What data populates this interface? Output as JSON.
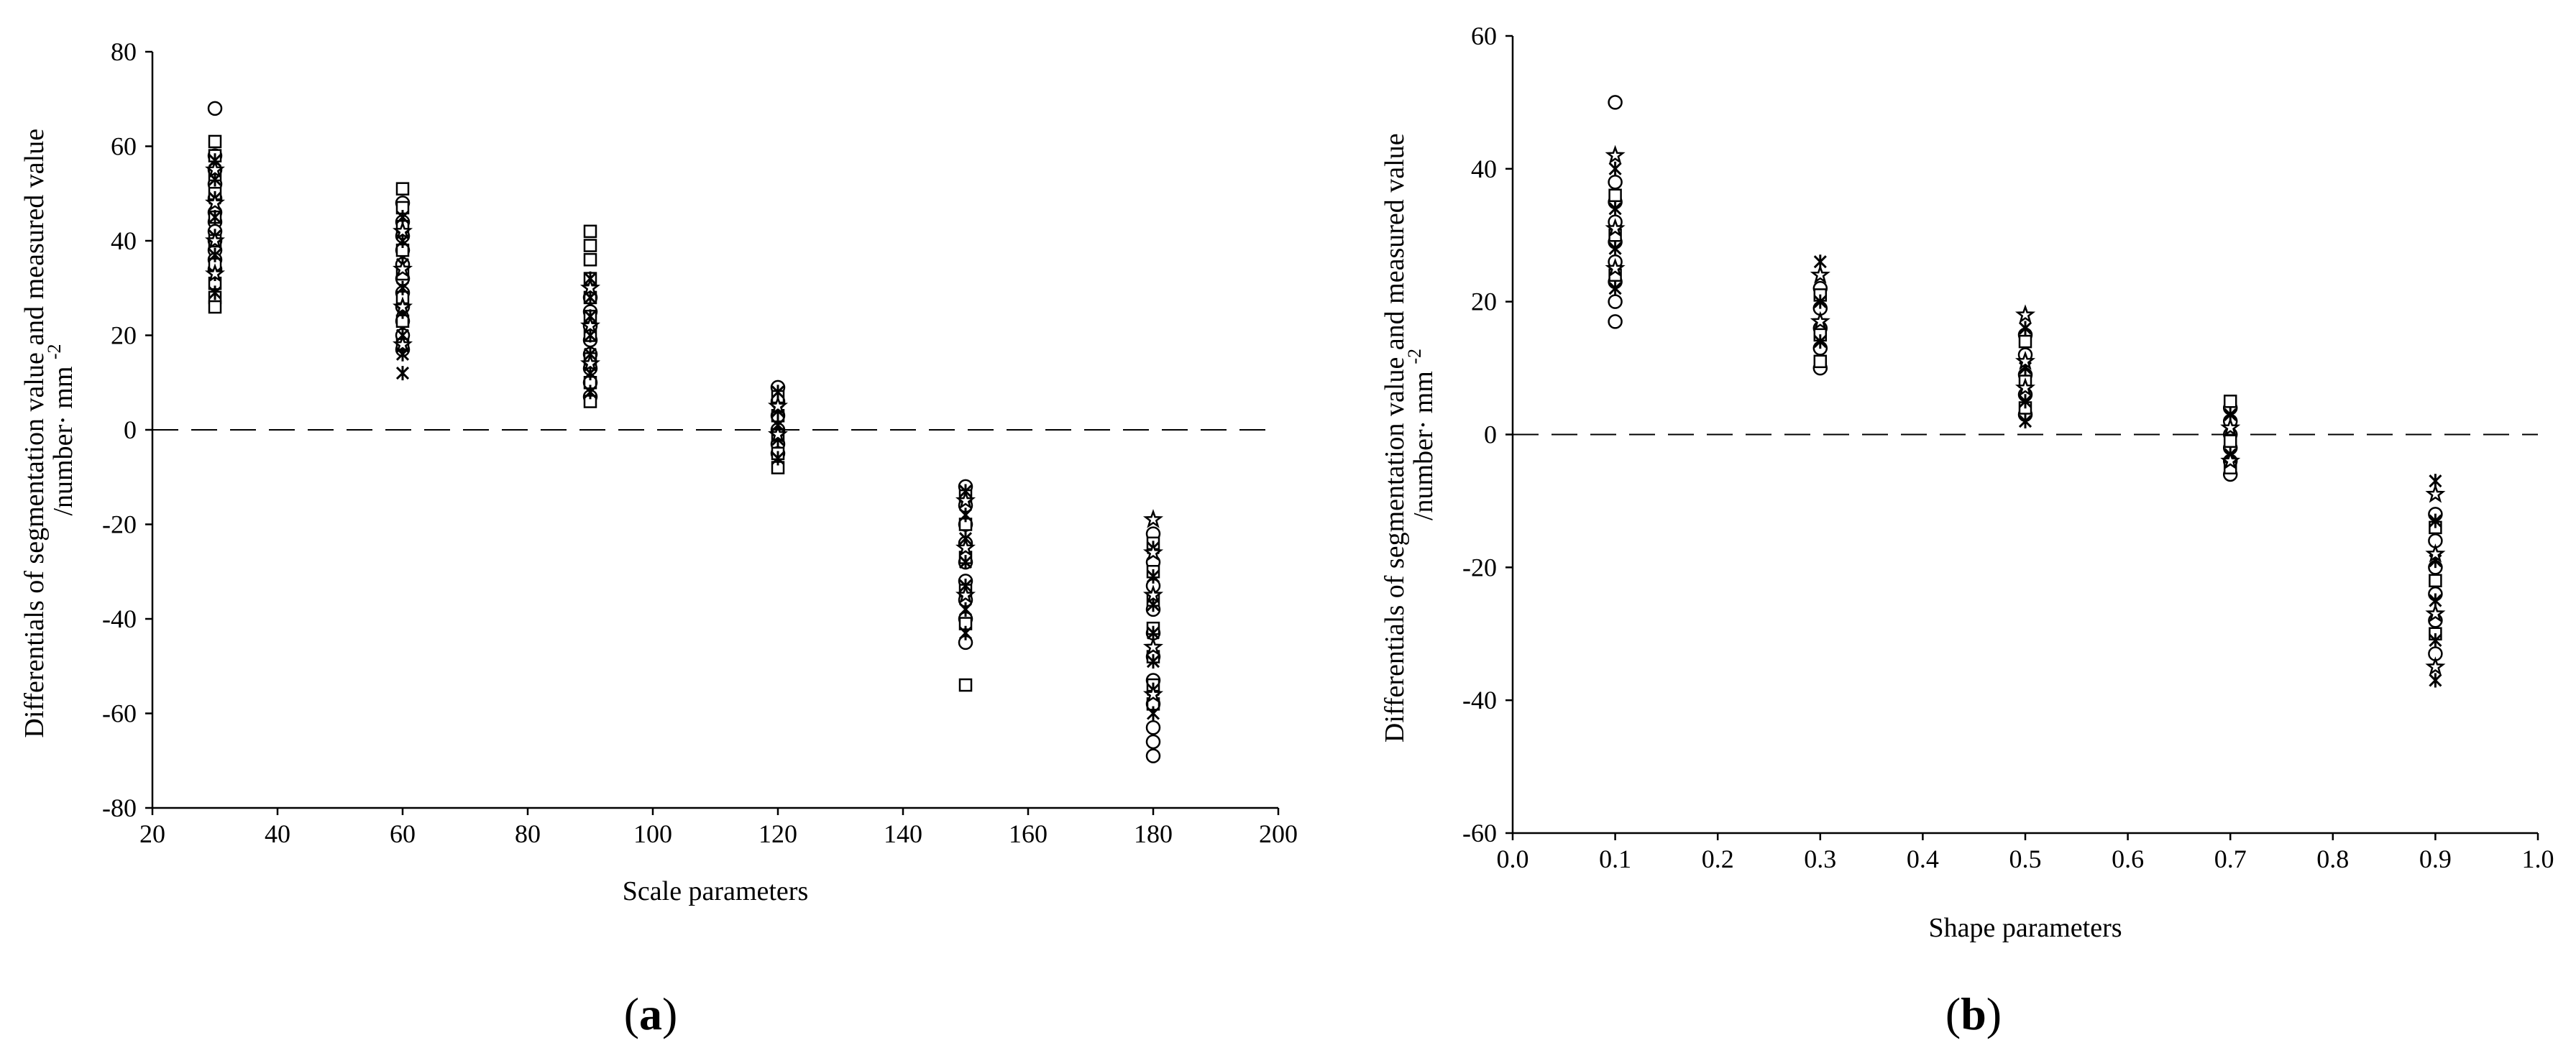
{
  "chart_data": [
    {
      "panel": "(a)",
      "panel_letter": "a",
      "type": "scatter",
      "title": "",
      "xlabel": "Scale parameters",
      "ylabel_line1": "Differentials of segmentation value and measured value",
      "ylabel_line2": "/number· mm",
      "ylabel_sup": "-2",
      "xlim": [
        20,
        200
      ],
      "ylim": [
        -80,
        80
      ],
      "xticks": [
        20,
        40,
        60,
        80,
        100,
        120,
        140,
        160,
        180,
        200
      ],
      "yticks": [
        -80,
        -60,
        -40,
        -20,
        0,
        20,
        40,
        60,
        80
      ],
      "reference_line": {
        "y": 0,
        "style": "dashed"
      },
      "grid": false,
      "series": [
        {
          "marker": "circle",
          "points": [
            [
              30,
              68
            ],
            [
              30,
              58
            ],
            [
              30,
              55
            ],
            [
              30,
              52
            ],
            [
              30,
              49
            ],
            [
              30,
              46
            ],
            [
              30,
              44
            ],
            [
              30,
              42
            ],
            [
              30,
              40
            ],
            [
              30,
              38
            ],
            [
              30,
              36
            ],
            [
              30,
              34
            ],
            [
              60,
              48
            ],
            [
              60,
              44
            ],
            [
              60,
              41
            ],
            [
              60,
              38
            ],
            [
              60,
              35
            ],
            [
              60,
              32
            ],
            [
              60,
              29
            ],
            [
              60,
              26
            ],
            [
              60,
              23
            ],
            [
              60,
              20
            ],
            [
              60,
              17
            ],
            [
              90,
              28
            ],
            [
              90,
              25
            ],
            [
              90,
              22
            ],
            [
              90,
              19
            ],
            [
              90,
              16
            ],
            [
              90,
              13
            ],
            [
              90,
              10
            ],
            [
              90,
              7
            ],
            [
              120,
              9
            ],
            [
              120,
              6
            ],
            [
              120,
              3
            ],
            [
              120,
              0
            ],
            [
              120,
              -3
            ],
            [
              120,
              -5
            ],
            [
              150,
              -12
            ],
            [
              150,
              -16
            ],
            [
              150,
              -20
            ],
            [
              150,
              -24
            ],
            [
              150,
              -28
            ],
            [
              150,
              -32
            ],
            [
              150,
              -36
            ],
            [
              150,
              -40
            ],
            [
              150,
              -45
            ],
            [
              180,
              -22
            ],
            [
              180,
              -28
            ],
            [
              180,
              -33
            ],
            [
              180,
              -38
            ],
            [
              180,
              -43
            ],
            [
              180,
              -48
            ],
            [
              180,
              -53
            ],
            [
              180,
              -58
            ],
            [
              180,
              -63
            ],
            [
              180,
              -66
            ],
            [
              180,
              -69
            ]
          ]
        },
        {
          "marker": "square",
          "points": [
            [
              30,
              61
            ],
            [
              30,
              58
            ],
            [
              30,
              54
            ],
            [
              30,
              50
            ],
            [
              30,
              45
            ],
            [
              30,
              40
            ],
            [
              30,
              35
            ],
            [
              30,
              31
            ],
            [
              30,
              28
            ],
            [
              30,
              26
            ],
            [
              60,
              51
            ],
            [
              60,
              47
            ],
            [
              60,
              43
            ],
            [
              60,
              38
            ],
            [
              60,
              33
            ],
            [
              60,
              28
            ],
            [
              60,
              23
            ],
            [
              60,
              18
            ],
            [
              90,
              42
            ],
            [
              90,
              39
            ],
            [
              90,
              36
            ],
            [
              90,
              32
            ],
            [
              90,
              28
            ],
            [
              90,
              24
            ],
            [
              90,
              20
            ],
            [
              90,
              15
            ],
            [
              90,
              10
            ],
            [
              90,
              6
            ],
            [
              120,
              7
            ],
            [
              120,
              3
            ],
            [
              120,
              -1
            ],
            [
              120,
              -5
            ],
            [
              120,
              -8
            ],
            [
              150,
              -14
            ],
            [
              150,
              -20
            ],
            [
              150,
              -27
            ],
            [
              150,
              -34
            ],
            [
              150,
              -41
            ],
            [
              150,
              -54
            ],
            [
              180,
              -24
            ],
            [
              180,
              -30
            ],
            [
              180,
              -36
            ],
            [
              180,
              -42
            ],
            [
              180,
              -48
            ],
            [
              180,
              -54
            ],
            [
              180,
              -58
            ]
          ]
        },
        {
          "marker": "cross",
          "points": [
            [
              30,
              57
            ],
            [
              30,
              53
            ],
            [
              30,
              49
            ],
            [
              30,
              45
            ],
            [
              30,
              41
            ],
            [
              30,
              37
            ],
            [
              30,
              33
            ],
            [
              30,
              29
            ],
            [
              60,
              45
            ],
            [
              60,
              40
            ],
            [
              60,
              35
            ],
            [
              60,
              30
            ],
            [
              60,
              25
            ],
            [
              60,
              20
            ],
            [
              60,
              16
            ],
            [
              60,
              12
            ],
            [
              90,
              32
            ],
            [
              90,
              28
            ],
            [
              90,
              24
            ],
            [
              90,
              20
            ],
            [
              90,
              16
            ],
            [
              90,
              12
            ],
            [
              90,
              8
            ],
            [
              120,
              8
            ],
            [
              120,
              4
            ],
            [
              120,
              1
            ],
            [
              120,
              -2
            ],
            [
              120,
              -6
            ],
            [
              150,
              -13
            ],
            [
              150,
              -18
            ],
            [
              150,
              -23
            ],
            [
              150,
              -28
            ],
            [
              150,
              -33
            ],
            [
              150,
              -38
            ],
            [
              150,
              -43
            ],
            [
              180,
              -25
            ],
            [
              180,
              -31
            ],
            [
              180,
              -37
            ],
            [
              180,
              -43
            ],
            [
              180,
              -49
            ],
            [
              180,
              -55
            ],
            [
              180,
              -60
            ]
          ]
        },
        {
          "marker": "star",
          "points": [
            [
              30,
              55
            ],
            [
              30,
              48
            ],
            [
              30,
              40
            ],
            [
              30,
              33
            ],
            [
              60,
              42
            ],
            [
              60,
              34
            ],
            [
              60,
              26
            ],
            [
              60,
              18
            ],
            [
              90,
              30
            ],
            [
              90,
              22
            ],
            [
              90,
              14
            ],
            [
              120,
              5
            ],
            [
              120,
              -1
            ],
            [
              150,
              -15
            ],
            [
              150,
              -25
            ],
            [
              150,
              -35
            ],
            [
              180,
              -19
            ],
            [
              180,
              -26
            ],
            [
              180,
              -35
            ],
            [
              180,
              -46
            ],
            [
              180,
              -56
            ]
          ]
        }
      ]
    },
    {
      "panel": "(b)",
      "panel_letter": "b",
      "type": "scatter",
      "title": "",
      "xlabel": "Shape parameters",
      "ylabel_line1": "Differentials of segmentation value and measured value",
      "ylabel_line2": "/number· mm",
      "ylabel_sup": "-2",
      "xlim": [
        0.0,
        1.0
      ],
      "ylim": [
        -60,
        60
      ],
      "xticks": [
        "0.0",
        "0.1",
        "0.2",
        "0.3",
        "0.4",
        "0.5",
        "0.6",
        "0.7",
        "0.8",
        "0.9",
        "1.0"
      ],
      "yticks": [
        -60,
        -40,
        -20,
        0,
        20,
        40,
        60
      ],
      "reference_line": {
        "y": 0,
        "style": "dashed"
      },
      "grid": false,
      "series": [
        {
          "marker": "circle",
          "points": [
            [
              0.1,
              50
            ],
            [
              0.1,
              38
            ],
            [
              0.1,
              35
            ],
            [
              0.1,
              32
            ],
            [
              0.1,
              29
            ],
            [
              0.1,
              26
            ],
            [
              0.1,
              23
            ],
            [
              0.1,
              20
            ],
            [
              0.1,
              17
            ],
            [
              0.3,
              22
            ],
            [
              0.3,
              19
            ],
            [
              0.3,
              16
            ],
            [
              0.3,
              13
            ],
            [
              0.3,
              10
            ],
            [
              0.5,
              15
            ],
            [
              0.5,
              12
            ],
            [
              0.5,
              9
            ],
            [
              0.5,
              6
            ],
            [
              0.5,
              3
            ],
            [
              0.7,
              4
            ],
            [
              0.7,
              2
            ],
            [
              0.7,
              0
            ],
            [
              0.7,
              -2
            ],
            [
              0.7,
              -4
            ],
            [
              0.7,
              -6
            ],
            [
              0.9,
              -12
            ],
            [
              0.9,
              -16
            ],
            [
              0.9,
              -20
            ],
            [
              0.9,
              -24
            ],
            [
              0.9,
              -28
            ],
            [
              0.9,
              -33
            ]
          ]
        },
        {
          "marker": "square",
          "points": [
            [
              0.1,
              36
            ],
            [
              0.1,
              30
            ],
            [
              0.1,
              24
            ],
            [
              0.3,
              21
            ],
            [
              0.3,
              15
            ],
            [
              0.3,
              11
            ],
            [
              0.5,
              14
            ],
            [
              0.5,
              8
            ],
            [
              0.5,
              4
            ],
            [
              0.7,
              5
            ],
            [
              0.7,
              -1
            ],
            [
              0.7,
              -5
            ],
            [
              0.9,
              -14
            ],
            [
              0.9,
              -22
            ],
            [
              0.9,
              -30
            ]
          ]
        },
        {
          "marker": "cross",
          "points": [
            [
              0.1,
              40
            ],
            [
              0.1,
              34
            ],
            [
              0.1,
              28
            ],
            [
              0.1,
              22
            ],
            [
              0.3,
              26
            ],
            [
              0.3,
              20
            ],
            [
              0.3,
              14
            ],
            [
              0.5,
              16
            ],
            [
              0.5,
              10
            ],
            [
              0.5,
              5
            ],
            [
              0.5,
              2
            ],
            [
              0.7,
              3
            ],
            [
              0.7,
              -3
            ],
            [
              0.9,
              -7
            ],
            [
              0.9,
              -13
            ],
            [
              0.9,
              -19
            ],
            [
              0.9,
              -25
            ],
            [
              0.9,
              -31
            ],
            [
              0.9,
              -37
            ]
          ]
        },
        {
          "marker": "star",
          "points": [
            [
              0.1,
              42
            ],
            [
              0.1,
              31
            ],
            [
              0.1,
              25
            ],
            [
              0.3,
              24
            ],
            [
              0.3,
              17
            ],
            [
              0.5,
              18
            ],
            [
              0.5,
              11
            ],
            [
              0.5,
              7
            ],
            [
              0.7,
              1
            ],
            [
              0.7,
              -4
            ],
            [
              0.9,
              -9
            ],
            [
              0.9,
              -18
            ],
            [
              0.9,
              -27
            ],
            [
              0.9,
              -35
            ]
          ]
        }
      ]
    }
  ]
}
